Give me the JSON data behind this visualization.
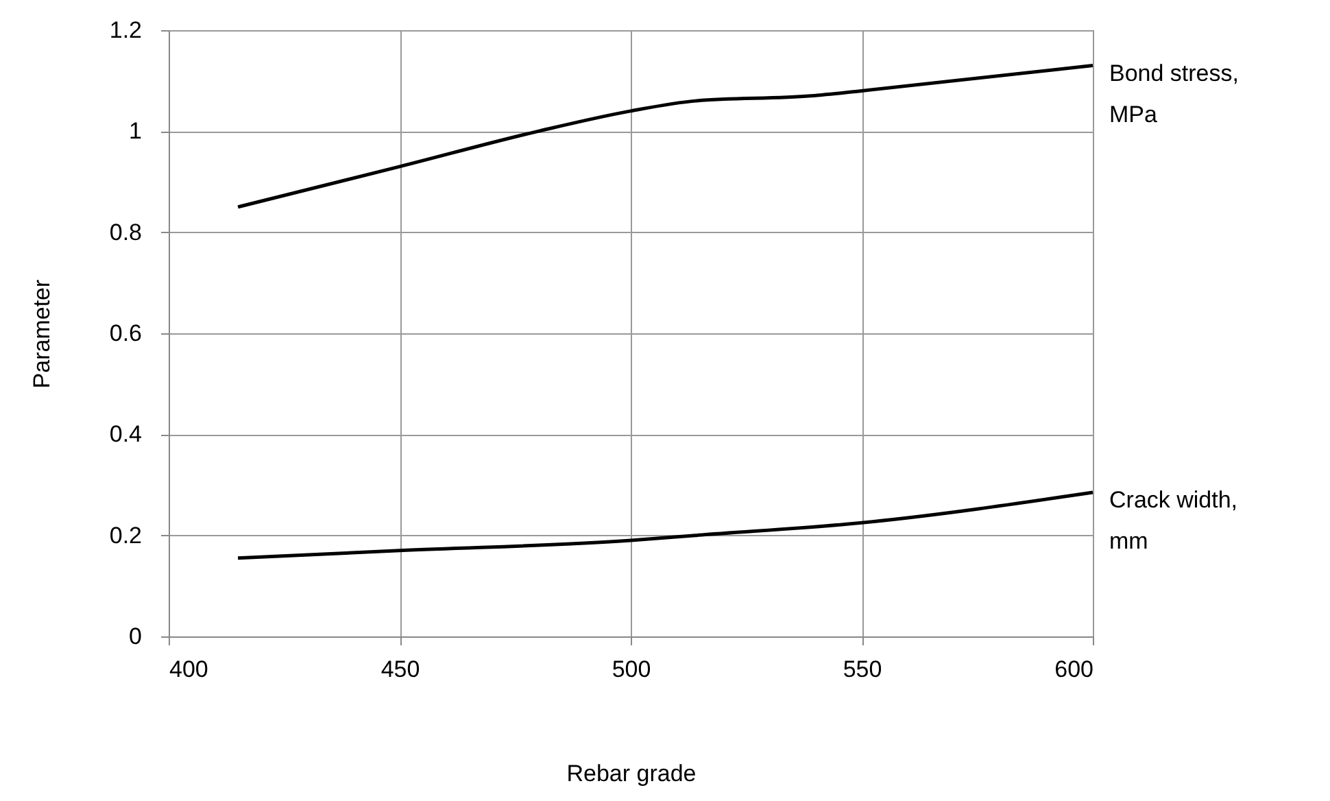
{
  "chart_data": {
    "type": "line",
    "xlabel": "Rebar grade",
    "ylabel": "Parameter",
    "xlim": [
      400,
      600
    ],
    "xticks": [
      400,
      450,
      500,
      550,
      600
    ],
    "ylim": [
      0,
      1.2
    ],
    "yticks": [
      0,
      0.2,
      0.4,
      0.6,
      0.8,
      1,
      1.2
    ],
    "grid": true,
    "legend": false,
    "marker": "none",
    "line_style": "solid",
    "series": [
      {
        "name": "Bond stress, MPa",
        "color": "#000000",
        "x": [
          415,
          450,
          480,
          500,
          514,
          539,
          550,
          600
        ],
        "values": [
          0.85,
          0.93,
          1.0,
          1.04,
          1.06,
          1.07,
          1.08,
          1.13
        ]
      },
      {
        "name": "Crack width, mm",
        "color": "#000000",
        "x": [
          415,
          450,
          500,
          514,
          550,
          600
        ],
        "values": [
          0.155,
          0.17,
          0.19,
          0.2,
          0.225,
          0.285
        ]
      }
    ]
  }
}
